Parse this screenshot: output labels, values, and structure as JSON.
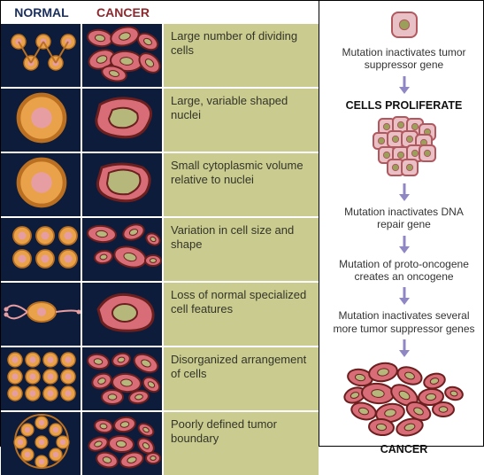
{
  "palette": {
    "bg_dark": "#0d1c3a",
    "desc_bg": "#cacb8e",
    "desc_text": "#34352a",
    "normal_header": "#1a2e5c",
    "cancer_header": "#8a2a2f",
    "normal_cell_outer": "#e9a24a",
    "normal_cell_ring": "#ba7020",
    "normal_cell_inner": "#e79ea2",
    "cancer_fill": "#d86d77",
    "cancer_stroke": "#6b1f1f",
    "cancer_nucleus": "#b6b77a",
    "arrow": "#8f87c4",
    "flow_cell_fill": "#e7c1c5",
    "flow_cell_stroke": "#b3575e",
    "flow_nucleus": "#9aa05a"
  },
  "left": {
    "headers": {
      "normal": "NORMAL",
      "cancer": "CANCER"
    },
    "rows": [
      {
        "id": "dividing",
        "desc": "Large number of dividing cells"
      },
      {
        "id": "nuclei",
        "desc": "Large, variable shaped nuclei"
      },
      {
        "id": "cytoplasm",
        "desc": "Small cytoplasmic volume relative to nuclei"
      },
      {
        "id": "variation",
        "desc": "Variation in cell size and shape"
      },
      {
        "id": "features",
        "desc": "Loss of normal specialized cell features"
      },
      {
        "id": "arrangement",
        "desc": "Disorganized arrangement of cells"
      },
      {
        "id": "boundary",
        "desc": "Poorly defined tumor boundary"
      }
    ]
  },
  "right": {
    "steps": [
      {
        "type": "icon",
        "id": "single-cell"
      },
      {
        "type": "caption",
        "text": "Mutation inactivates tumor suppressor gene"
      },
      {
        "type": "arrow"
      },
      {
        "type": "heading",
        "text": "CELLS PROLIFERATE"
      },
      {
        "type": "icon",
        "id": "cluster"
      },
      {
        "type": "arrow"
      },
      {
        "type": "caption",
        "text": "Mutation inactivates DNA repair gene"
      },
      {
        "type": "arrow"
      },
      {
        "type": "caption",
        "text": "Mutation of proto-oncogene creates an oncogene"
      },
      {
        "type": "arrow"
      },
      {
        "type": "caption",
        "text": "Mutation inactivates several more tumor suppressor genes"
      },
      {
        "type": "arrow"
      },
      {
        "type": "icon",
        "id": "tumor"
      },
      {
        "type": "heading",
        "text": "CANCER"
      }
    ]
  }
}
